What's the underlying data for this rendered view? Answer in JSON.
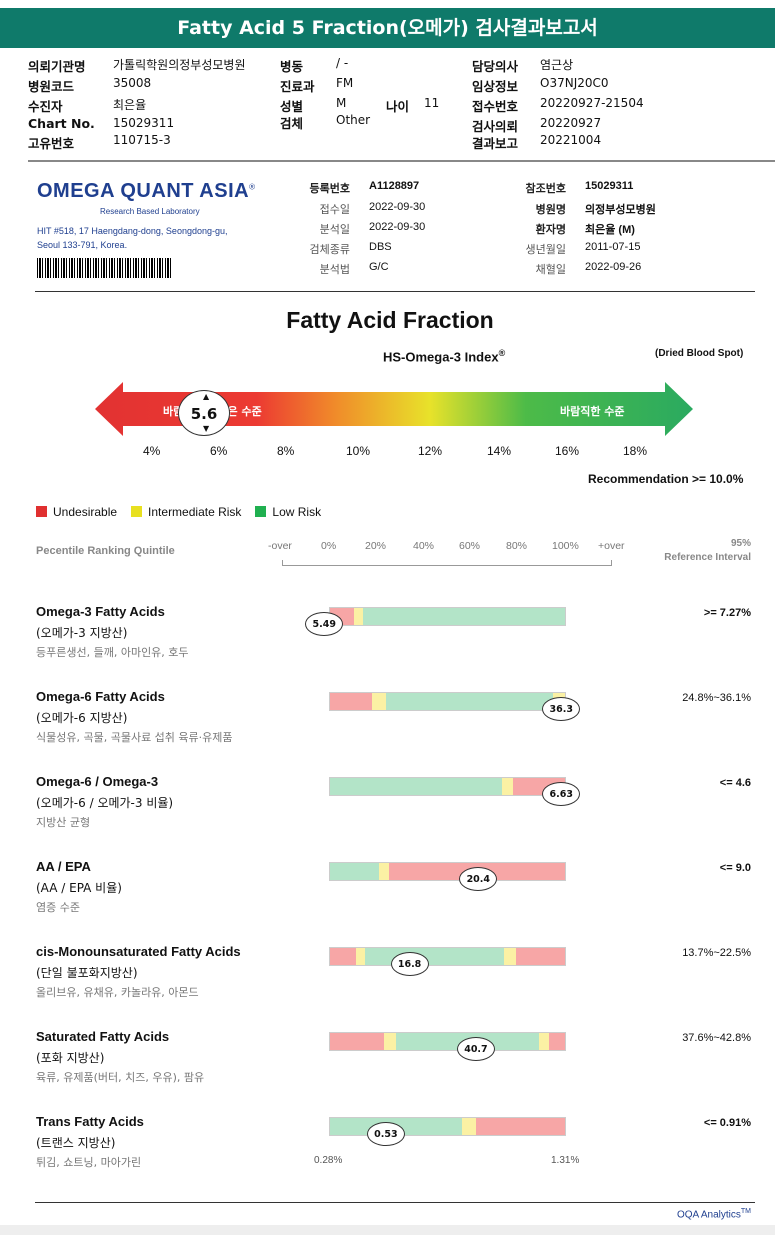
{
  "report_title": "Fatty Acid 5 Fraction(오메가) 검사결과보고서",
  "header": {
    "col1": [
      {
        "label": "의뢰기관명",
        "value": "가톨릭학원의정부성모병원"
      },
      {
        "label": "병원코드",
        "value": "35008"
      },
      {
        "label": "수진자",
        "value": "최은율"
      },
      {
        "label": "Chart No.",
        "value": "15029311"
      },
      {
        "label": "고유번호",
        "value": "110715-3"
      }
    ],
    "col2": [
      {
        "label": "병동",
        "value": "/ -"
      },
      {
        "label": "진료과",
        "value": "FM"
      },
      {
        "label": "성별",
        "value": "M"
      },
      {
        "label": "검체",
        "value": "Other"
      }
    ],
    "age_label": "나이",
    "age_value": "11",
    "col3": [
      {
        "label": "담당의사",
        "value": "염근상"
      },
      {
        "label": "임상정보",
        "value": "O37NJ20C0"
      },
      {
        "label": "접수번호",
        "value": "20220927-21504"
      },
      {
        "label": "검사의뢰",
        "value": "20220927"
      },
      {
        "label": "결과보고",
        "value": "20221004"
      }
    ]
  },
  "lab": {
    "logo": "OMEGA QUANT ASIA",
    "logo_mark": "®",
    "tagline": "Research Based Laboratory",
    "address_1": "HIT #518, 17 Haengdang-dong, Seongdong-gu,",
    "address_2": "Seoul 133-791, Korea."
  },
  "info_left": [
    {
      "label": "등록번호",
      "value": "A1128897",
      "bold": true
    },
    {
      "label": "접수일",
      "value": "2022-09-30"
    },
    {
      "label": "분석일",
      "value": "2022-09-30"
    },
    {
      "label": "검체종류",
      "value": "DBS"
    },
    {
      "label": "분석법",
      "value": "G/C"
    }
  ],
  "info_right": [
    {
      "label": "참조번호",
      "value": "15029311",
      "bold": true
    },
    {
      "label": "병원명",
      "value": "의정부성모병원",
      "bold": true
    },
    {
      "label": "환자명",
      "value": "최은율 (M)",
      "bold": true
    },
    {
      "label": "생년월일",
      "value": "2011-07-15"
    },
    {
      "label": "채혈일",
      "value": "2022-09-26"
    }
  ],
  "main_title": "Fatty Acid Fraction",
  "index_title": "HS-Omega-3 Index",
  "index_reg": "®",
  "dbs_note": "(Dried Blood Spot)",
  "arrow": {
    "left_text": "바람직하지 않은 수준",
    "right_text": "바람직한 수준",
    "value": "5.6",
    "ticks": [
      "4%",
      "6%",
      "8%",
      "10%",
      "12%",
      "14%",
      "16%",
      "18%"
    ]
  },
  "recommendation": "Recommendation  >= 10.0%",
  "legend": [
    {
      "label": "Undesirable",
      "color": "#e03030"
    },
    {
      "label": "Intermediate Risk",
      "color": "#e8e020"
    },
    {
      "label": "Low Risk",
      "color": "#20b050"
    }
  ],
  "percentile": {
    "label": "Pecentile Ranking Quintile",
    "ticks": [
      "-over",
      "0%",
      "20%",
      "40%",
      "60%",
      "80%",
      "100%",
      "+over"
    ],
    "ref_line1": "95%",
    "ref_line2": "Reference Interval"
  },
  "rows": [
    {
      "name": "Omega-3 Fatty Acids",
      "sub": "(오메가-3 지방산)",
      "desc": "등푸른생선, 들깨, 아마인유, 호두",
      "value": "5.49",
      "value_pos": -0.02,
      "ref": ">= 7.27%",
      "ref_bold": true,
      "segments": [
        [
          "red",
          0.1
        ],
        [
          "yel",
          0.04
        ],
        [
          "grn",
          0.86
        ]
      ]
    },
    {
      "name": "Omega-6 Fatty Acids",
      "sub": "(오메가-6 지방산)",
      "desc": "식물성유, 곡물, 곡물사료 섭취 육류·유제품",
      "value": "36.3",
      "value_pos": 0.98,
      "ref": "24.8%~36.1%",
      "ref_bold": false,
      "segments": [
        [
          "red",
          0.18
        ],
        [
          "yel",
          0.06
        ],
        [
          "grn",
          0.71
        ],
        [
          "yel",
          0.05
        ]
      ]
    },
    {
      "name": "Omega-6 / Omega-3",
      "sub": "(오메가-6 / 오메가-3 비율)",
      "desc": "지방산 균형",
      "value": "6.63",
      "value_pos": 0.98,
      "ref": "<= 4.6",
      "ref_bold": true,
      "segments": [
        [
          "grn",
          0.73
        ],
        [
          "yel",
          0.05
        ],
        [
          "red",
          0.22
        ]
      ]
    },
    {
      "name": "AA / EPA",
      "sub": "(AA / EPA 비율)",
      "desc": "염증 수준",
      "value": "20.4",
      "value_pos": 0.63,
      "ref": "<= 9.0",
      "ref_bold": true,
      "segments": [
        [
          "grn",
          0.21
        ],
        [
          "yel",
          0.04
        ],
        [
          "red",
          0.75
        ]
      ]
    },
    {
      "name": "cis-Monounsaturated Fatty Acids",
      "sub": "(단일 불포화지방산)",
      "desc": "올리브유, 유채유, 카놀라유, 아몬드",
      "value": "16.8",
      "value_pos": 0.34,
      "ref": "13.7%~22.5%",
      "ref_bold": false,
      "segments": [
        [
          "red",
          0.11
        ],
        [
          "yel",
          0.04
        ],
        [
          "grn",
          0.59
        ],
        [
          "yel",
          0.05
        ],
        [
          "red",
          0.21
        ]
      ]
    },
    {
      "name": "Saturated Fatty Acids",
      "sub": "(포화 지방산)",
      "desc": "육류, 유제품(버터, 치즈, 우유), 팜유",
      "value": "40.7",
      "value_pos": 0.62,
      "ref": "37.6%~42.8%",
      "ref_bold": false,
      "segments": [
        [
          "red",
          0.23
        ],
        [
          "yel",
          0.05
        ],
        [
          "grn",
          0.61
        ],
        [
          "yel",
          0.04
        ],
        [
          "red",
          0.07
        ]
      ]
    },
    {
      "name": "Trans Fatty Acids",
      "sub": "(트랜스 지방산)",
      "desc": "튀김, 쇼트닝, 마아가린",
      "value": "0.53",
      "value_pos": 0.24,
      "ref": "<= 0.91%",
      "ref_bold": true,
      "segments": [
        [
          "grn",
          0.56
        ],
        [
          "yel",
          0.06
        ],
        [
          "red",
          0.38
        ]
      ]
    }
  ],
  "axis_min": "0.28%",
  "axis_max": "1.31%",
  "footer": "OQA Analytics",
  "footer_tm": "TM"
}
